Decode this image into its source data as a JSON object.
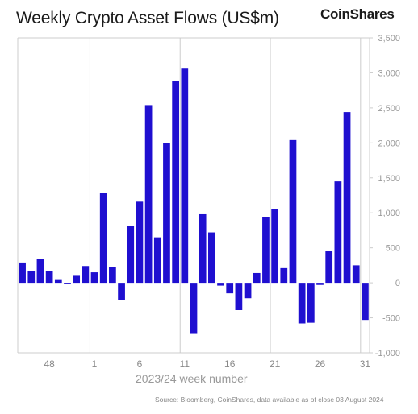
{
  "header": {
    "title": "Weekly Crypto Asset Flows (US$m)",
    "logo": "CoinShares"
  },
  "footer": {
    "source": "Source: Bloomberg, CoinShares, data available as of close 03 August 2024"
  },
  "chart_data": {
    "type": "bar",
    "xlabel": "2023/24 week number",
    "ylabel": "",
    "ylim": [
      -1000,
      3500
    ],
    "yticks": [
      -1000,
      -500,
      0,
      500,
      1000,
      1500,
      2000,
      2500,
      3000,
      3500
    ],
    "ytick_labels": [
      "-1,000",
      "-500",
      "0",
      "500",
      "1,000",
      "1,500",
      "2,000",
      "2,500",
      "3,000",
      "3,500"
    ],
    "y_axis_position": "right",
    "grid": "vertical lines at labeled weeks",
    "bar_color": "#1f0fd0",
    "categories": [
      "45",
      "46",
      "47",
      "48",
      "49",
      "50",
      "51",
      "52",
      "1",
      "2",
      "3",
      "4",
      "5",
      "6",
      "7",
      "8",
      "9",
      "10",
      "11",
      "12",
      "13",
      "14",
      "15",
      "16",
      "17",
      "18",
      "19",
      "20",
      "21",
      "22",
      "23",
      "24",
      "25",
      "26",
      "27",
      "28",
      "29",
      "30",
      "31"
    ],
    "x_tick_labels": [
      "48",
      "1",
      "6",
      "11",
      "16",
      "21",
      "26",
      "31"
    ],
    "values": [
      290,
      170,
      340,
      170,
      40,
      -20,
      100,
      240,
      150,
      1290,
      220,
      -250,
      810,
      1160,
      2540,
      650,
      2000,
      2880,
      3060,
      -730,
      980,
      720,
      -40,
      -150,
      -390,
      -220,
      140,
      940,
      1050,
      210,
      2040,
      -580,
      -570,
      -30,
      450,
      1450,
      2440,
      250,
      -530
    ]
  }
}
